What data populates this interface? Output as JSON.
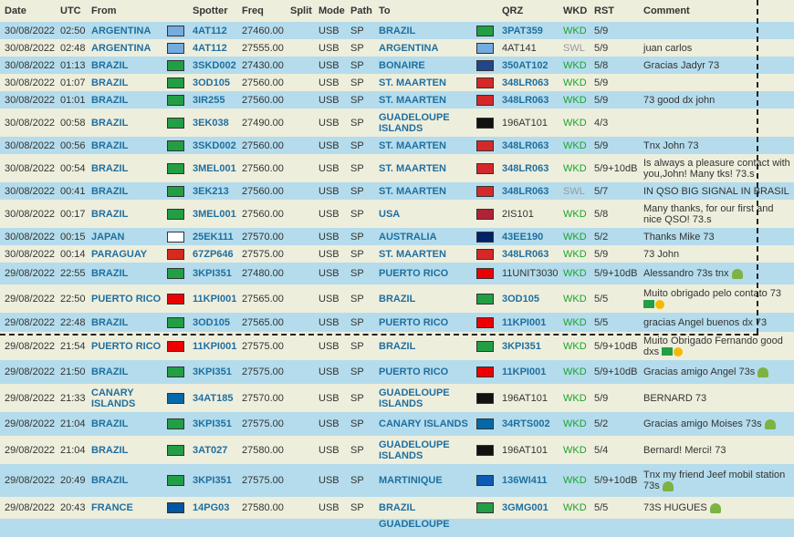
{
  "headers": [
    "Date",
    "UTC",
    "From",
    "",
    "Spotter",
    "Freq",
    "Split",
    "Mode",
    "Path",
    "To",
    "",
    "QRZ",
    "WKD",
    "RST",
    "Comment"
  ],
  "flag_colors": {
    "AR": "#74acdf",
    "BR": "#229e45",
    "BQ": "#21468b",
    "SX": "#d62828",
    "US": "#b22234",
    "JP": "#ffffff",
    "AU": "#012169",
    "PY": "#d52b1e",
    "PR": "#ed0000",
    "IC": "#0768a9",
    "FR": "#0055a4",
    "MQ": "#0c5ab4",
    "GP": "#111111"
  },
  "rows": [
    {
      "h": 19,
      "bg": "blue",
      "date": "30/08/2022",
      "utc": "02:50",
      "from": "ARGENTINA",
      "from_flag": "AR",
      "spotter": "4AT112",
      "freq": "27460.00",
      "split": "",
      "mode": "USB",
      "path": "SP",
      "to": "BRAZIL",
      "to_flag": "BR",
      "qrz": "3PAT359",
      "qrz_bold": true,
      "wkd": "WKD",
      "rst": "5/9",
      "comment": ""
    },
    {
      "h": 19,
      "bg": "cream",
      "date": "30/08/2022",
      "utc": "02:48",
      "from": "ARGENTINA",
      "from_flag": "AR",
      "spotter": "4AT112",
      "freq": "27555.00",
      "split": "",
      "mode": "USB",
      "path": "SP",
      "to": "ARGENTINA",
      "to_flag": "AR",
      "qrz": "4AT141",
      "qrz_bold": false,
      "wkd": "SWL",
      "rst": "5/9",
      "comment": "juan carlos"
    },
    {
      "h": 19,
      "bg": "blue",
      "date": "30/08/2022",
      "utc": "01:13",
      "from": "BRAZIL",
      "from_flag": "BR",
      "spotter": "3SKD002",
      "freq": "27430.00",
      "split": "",
      "mode": "USB",
      "path": "SP",
      "to": "BONAIRE",
      "to_flag": "BQ",
      "qrz": "350AT102",
      "qrz_bold": true,
      "wkd": "WKD",
      "rst": "5/8",
      "comment": "Gracias Jadyr 73"
    },
    {
      "h": 19,
      "bg": "cream",
      "date": "30/08/2022",
      "utc": "01:07",
      "from": "BRAZIL",
      "from_flag": "BR",
      "spotter": "3OD105",
      "freq": "27560.00",
      "split": "",
      "mode": "USB",
      "path": "SP",
      "to": "ST. MAARTEN",
      "to_flag": "SX",
      "qrz": "348LR063",
      "qrz_bold": true,
      "wkd": "WKD",
      "rst": "5/9",
      "comment": ""
    },
    {
      "h": 19,
      "bg": "blue",
      "date": "30/08/2022",
      "utc": "01:01",
      "from": "BRAZIL",
      "from_flag": "BR",
      "spotter": "3IR255",
      "freq": "27560.00",
      "split": "",
      "mode": "USB",
      "path": "SP",
      "to": "ST. MAARTEN",
      "to_flag": "SX",
      "qrz": "348LR063",
      "qrz_bold": true,
      "wkd": "WKD",
      "rst": "5/9",
      "comment": "73 good dx john"
    },
    {
      "h": 31,
      "bg": "cream",
      "date": "30/08/2022",
      "utc": "00:58",
      "from": "BRAZIL",
      "from_flag": "BR",
      "spotter": "3EK038",
      "freq": "27490.00",
      "split": "",
      "mode": "USB",
      "path": "SP",
      "to": "GUADELOUPE ISLANDS",
      "to_flag": "GP",
      "qrz": "196AT101",
      "qrz_bold": false,
      "wkd": "WKD",
      "rst": "4/3",
      "comment": ""
    },
    {
      "h": 19,
      "bg": "blue",
      "date": "30/08/2022",
      "utc": "00:56",
      "from": "BRAZIL",
      "from_flag": "BR",
      "spotter": "3SKD002",
      "freq": "27560.00",
      "split": "",
      "mode": "USB",
      "path": "SP",
      "to": "ST. MAARTEN",
      "to_flag": "SX",
      "qrz": "348LR063",
      "qrz_bold": true,
      "wkd": "WKD",
      "rst": "5/9",
      "comment": "Tnx John 73"
    },
    {
      "h": 31,
      "bg": "cream",
      "date": "30/08/2022",
      "utc": "00:54",
      "from": "BRAZIL",
      "from_flag": "BR",
      "spotter": "3MEL001",
      "freq": "27560.00",
      "split": "",
      "mode": "USB",
      "path": "SP",
      "to": "ST. MAARTEN",
      "to_flag": "SX",
      "qrz": "348LR063",
      "qrz_bold": true,
      "wkd": "WKD",
      "rst": "5/9+10dB",
      "comment": "Is always a pleasure contact with you,John! Many tks! 73.s"
    },
    {
      "h": 19,
      "bg": "blue",
      "date": "30/08/2022",
      "utc": "00:41",
      "from": "BRAZIL",
      "from_flag": "BR",
      "spotter": "3EK213",
      "freq": "27560.00",
      "split": "",
      "mode": "USB",
      "path": "SP",
      "to": "ST. MAARTEN",
      "to_flag": "SX",
      "qrz": "348LR063",
      "qrz_bold": true,
      "wkd": "SWL",
      "rst": "5/7",
      "comment": "IN QSO BIG SIGNAL IN BRASIL"
    },
    {
      "h": 31,
      "bg": "cream",
      "date": "30/08/2022",
      "utc": "00:17",
      "from": "BRAZIL",
      "from_flag": "BR",
      "spotter": "3MEL001",
      "freq": "27560.00",
      "split": "",
      "mode": "USB",
      "path": "SP",
      "to": "USA",
      "to_flag": "US",
      "qrz": "2IS101",
      "qrz_bold": false,
      "wkd": "WKD",
      "rst": "5/8",
      "comment": "Many thanks, for our first and nice QSO! 73.s"
    },
    {
      "h": 19,
      "bg": "blue",
      "date": "30/08/2022",
      "utc": "00:15",
      "from": "JAPAN",
      "from_flag": "JP",
      "spotter": "25EK111",
      "freq": "27570.00",
      "split": "",
      "mode": "USB",
      "path": "SP",
      "to": "AUSTRALIA",
      "to_flag": "AU",
      "qrz": "43EE190",
      "qrz_bold": true,
      "wkd": "WKD",
      "rst": "5/2",
      "comment": "Thanks Mike 73"
    },
    {
      "h": 19,
      "bg": "cream",
      "date": "30/08/2022",
      "utc": "00:14",
      "from": "PARAGUAY",
      "from_flag": "PY",
      "spotter": "67ZP646",
      "freq": "27575.00",
      "split": "",
      "mode": "USB",
      "path": "SP",
      "to": "ST. MAARTEN",
      "to_flag": "SX",
      "qrz": "348LR063",
      "qrz_bold": true,
      "wkd": "WKD",
      "rst": "5/9",
      "comment": "73 John"
    },
    {
      "h": 24,
      "bg": "blue",
      "date": "29/08/2022",
      "utc": "22:55",
      "from": "BRAZIL",
      "from_flag": "BR",
      "spotter": "3KPI351",
      "freq": "27480.00",
      "split": "",
      "mode": "USB",
      "path": "SP",
      "to": "PUERTO RICO",
      "to_flag": "PR",
      "qrz": "11UNIT3030",
      "qrz_bold": false,
      "wkd": "WKD",
      "rst": "5/9+10dB",
      "comment": "Alessandro 73s tnx",
      "icon": "robot"
    },
    {
      "h": 31,
      "bg": "cream",
      "date": "29/08/2022",
      "utc": "22:50",
      "from": "PUERTO RICO",
      "from_flag": "PR",
      "spotter": "11KPI001",
      "freq": "27565.00",
      "split": "",
      "mode": "USB",
      "path": "SP",
      "to": "BRAZIL",
      "to_flag": "BR",
      "qrz": "3OD105",
      "qrz_bold": true,
      "wkd": "WKD",
      "rst": "5/5",
      "comment": "Muito obrigado pelo contato 73",
      "icon": "flag-thumb"
    },
    {
      "h": 21,
      "bg": "blue",
      "date": "29/08/2022",
      "utc": "22:48",
      "from": "BRAZIL",
      "from_flag": "BR",
      "spotter": "3OD105",
      "freq": "27565.00",
      "split": "",
      "mode": "USB",
      "path": "SP",
      "to": "PUERTO RICO",
      "to_flag": "PR",
      "qrz": "11KPI001",
      "qrz_bold": true,
      "wkd": "WKD",
      "rst": "5/5",
      "comment": "gracias Angel buenos dx 73"
    },
    {
      "h": 31,
      "bg": "cream",
      "date": "29/08/2022",
      "utc": "21:54",
      "from": "PUERTO RICO",
      "from_flag": "PR",
      "spotter": "11KPI001",
      "freq": "27575.00",
      "split": "",
      "mode": "USB",
      "path": "SP",
      "to": "BRAZIL",
      "to_flag": "BR",
      "qrz": "3KPI351",
      "qrz_bold": true,
      "wkd": "WKD",
      "rst": "5/9+10dB",
      "comment": "Muito Obrigado Fernando good dxs",
      "icon": "flag-thumb"
    },
    {
      "h": 26,
      "bg": "blue",
      "date": "29/08/2022",
      "utc": "21:50",
      "from": "BRAZIL",
      "from_flag": "BR",
      "spotter": "3KPI351",
      "freq": "27575.00",
      "split": "",
      "mode": "USB",
      "path": "SP",
      "to": "PUERTO RICO",
      "to_flag": "PR",
      "qrz": "11KPI001",
      "qrz_bold": true,
      "wkd": "WKD",
      "rst": "5/9+10dB",
      "comment": "Gracias amigo Angel 73s",
      "icon": "robot"
    },
    {
      "h": 31,
      "bg": "cream",
      "date": "29/08/2022",
      "utc": "21:33",
      "from": "CANARY ISLANDS",
      "from_flag": "IC",
      "spotter": "34AT185",
      "freq": "27570.00",
      "split": "",
      "mode": "USB",
      "path": "SP",
      "to": "GUADELOUPE ISLANDS",
      "to_flag": "GP",
      "qrz": "196AT101",
      "qrz_bold": false,
      "wkd": "WKD",
      "rst": "5/9",
      "comment": "BERNARD 73"
    },
    {
      "h": 26,
      "bg": "blue",
      "date": "29/08/2022",
      "utc": "21:04",
      "from": "BRAZIL",
      "from_flag": "BR",
      "spotter": "3KPI351",
      "freq": "27575.00",
      "split": "",
      "mode": "USB",
      "path": "SP",
      "to": "CANARY ISLANDS",
      "to_flag": "IC",
      "qrz": "34RTS002",
      "qrz_bold": true,
      "wkd": "WKD",
      "rst": "5/2",
      "comment": "Gracias amigo Moises 73s",
      "icon": "robot"
    },
    {
      "h": 31,
      "bg": "cream",
      "date": "29/08/2022",
      "utc": "21:04",
      "from": "BRAZIL",
      "from_flag": "BR",
      "spotter": "3AT027",
      "freq": "27580.00",
      "split": "",
      "mode": "USB",
      "path": "SP",
      "to": "GUADELOUPE ISLANDS",
      "to_flag": "GP",
      "qrz": "196AT101",
      "qrz_bold": false,
      "wkd": "WKD",
      "rst": "5/4",
      "comment": "Bernard! Merci! 73"
    },
    {
      "h": 36,
      "bg": "blue",
      "date": "29/08/2022",
      "utc": "20:49",
      "from": "BRAZIL",
      "from_flag": "BR",
      "spotter": "3KPI351",
      "freq": "27575.00",
      "split": "",
      "mode": "USB",
      "path": "SP",
      "to": "MARTINIQUE",
      "to_flag": "MQ",
      "qrz": "136WI411",
      "qrz_bold": true,
      "wkd": "WKD",
      "rst": "5/9+10dB",
      "comment": "Tnx my friend Jeef mobil station 73s",
      "icon": "robot"
    },
    {
      "h": 24,
      "bg": "cream",
      "date": "29/08/2022",
      "utc": "20:43",
      "from": "FRANCE",
      "from_flag": "FR",
      "spotter": "14PG03",
      "freq": "27580.00",
      "split": "",
      "mode": "USB",
      "path": "SP",
      "to": "BRAZIL",
      "to_flag": "BR",
      "qrz": "3GMG001",
      "qrz_bold": true,
      "wkd": "WKD",
      "rst": "5/5",
      "comment": "73S HUGUES",
      "icon": "robot"
    }
  ],
  "partial_row": {
    "to": "GUADELOUPE"
  }
}
